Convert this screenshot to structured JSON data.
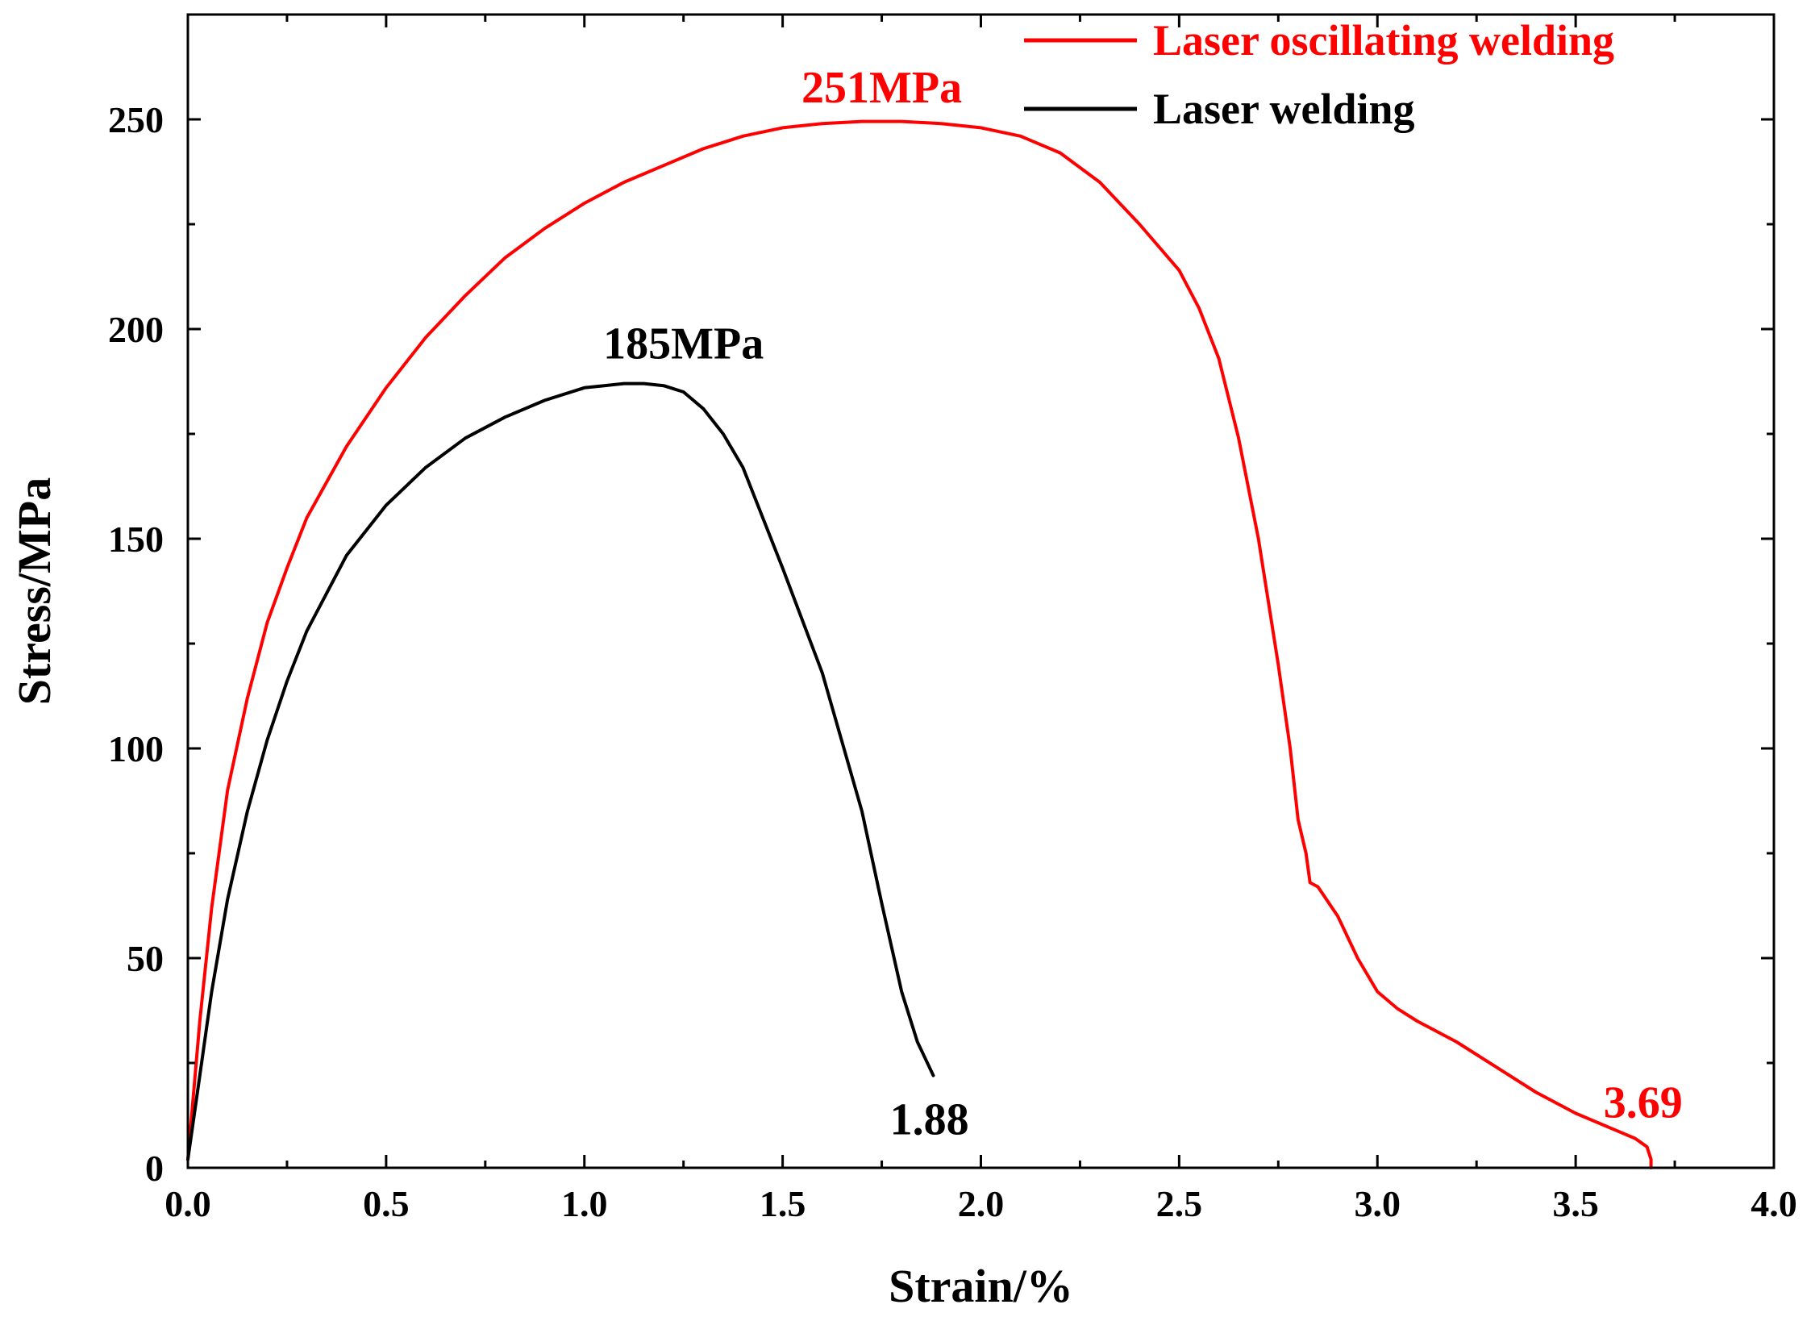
{
  "chart_data": {
    "type": "line",
    "title": "",
    "xlabel": "Strain/%",
    "ylabel": "Stress/MPa",
    "xlim": [
      0,
      4.0
    ],
    "ylim": [
      0,
      275
    ],
    "x_ticks": [
      0.0,
      0.5,
      1.0,
      1.5,
      2.0,
      2.5,
      3.0,
      3.5,
      4.0
    ],
    "x_tick_labels": [
      "0.0",
      "0.5",
      "1.0",
      "1.5",
      "2.0",
      "2.5",
      "3.0",
      "3.5",
      "4.0"
    ],
    "y_ticks": [
      0,
      50,
      100,
      150,
      200,
      250
    ],
    "y_tick_labels": [
      "0",
      "50",
      "100",
      "150",
      "200",
      "250"
    ],
    "grid": false,
    "legend_position": "top-right",
    "series": [
      {
        "name": "Laser oscillating welding",
        "color": "#ff0000",
        "x": [
          0,
          0.03,
          0.06,
          0.1,
          0.15,
          0.2,
          0.25,
          0.3,
          0.4,
          0.5,
          0.6,
          0.7,
          0.8,
          0.9,
          1.0,
          1.1,
          1.2,
          1.3,
          1.4,
          1.5,
          1.6,
          1.7,
          1.8,
          1.9,
          2.0,
          2.1,
          2.2,
          2.3,
          2.4,
          2.5,
          2.55,
          2.6,
          2.65,
          2.7,
          2.75,
          2.78,
          2.8,
          2.82,
          2.83,
          2.85,
          2.9,
          2.95,
          3.0,
          3.05,
          3.1,
          3.2,
          3.3,
          3.4,
          3.5,
          3.6,
          3.65,
          3.68,
          3.69,
          3.69
        ],
        "y": [
          2,
          35,
          62,
          90,
          112,
          130,
          143,
          155,
          172,
          186,
          198,
          208,
          217,
          224,
          230,
          235,
          239,
          243,
          246,
          248,
          249,
          249.5,
          249.5,
          249,
          248,
          246,
          242,
          235,
          225,
          214,
          205,
          193,
          174,
          150,
          120,
          100,
          83,
          75,
          68,
          67,
          60,
          50,
          42,
          38,
          35,
          30,
          24,
          18,
          13,
          9,
          7,
          5,
          2,
          0
        ]
      },
      {
        "name": "Laser welding",
        "color": "#000000",
        "x": [
          0,
          0.03,
          0.06,
          0.1,
          0.15,
          0.2,
          0.25,
          0.3,
          0.4,
          0.5,
          0.6,
          0.7,
          0.8,
          0.9,
          1.0,
          1.05,
          1.1,
          1.15,
          1.2,
          1.25,
          1.3,
          1.35,
          1.4,
          1.45,
          1.5,
          1.6,
          1.7,
          1.75,
          1.8,
          1.84,
          1.86,
          1.88
        ],
        "y": [
          2,
          22,
          42,
          64,
          85,
          102,
          116,
          128,
          146,
          158,
          167,
          174,
          179,
          183,
          186,
          186.5,
          187,
          187,
          186.5,
          185,
          181,
          175,
          167,
          155,
          143,
          118,
          85,
          63,
          42,
          30,
          26,
          22
        ]
      }
    ],
    "annotations": [
      {
        "text": "251MPa",
        "color": "#ff0000",
        "x": 1.75,
        "y": 254
      },
      {
        "text": "185MPa",
        "color": "#000000",
        "x": 1.25,
        "y": 193
      },
      {
        "text": "1.88",
        "color": "#000000",
        "x": 1.87,
        "y": 8
      },
      {
        "text": "3.69",
        "color": "#ff0000",
        "x": 3.67,
        "y": 12
      }
    ]
  }
}
